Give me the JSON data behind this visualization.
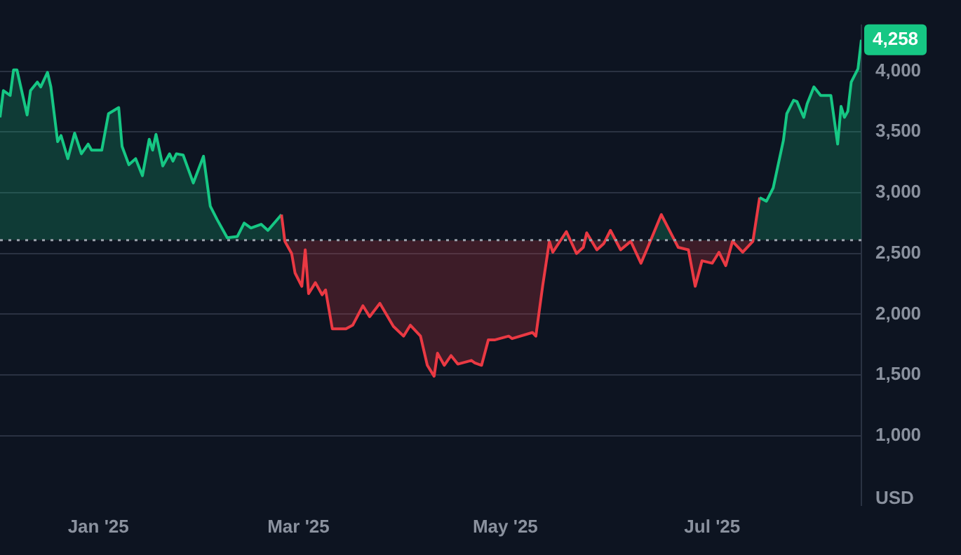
{
  "chart_data": {
    "type": "area",
    "ylabel": "USD",
    "x": [
      "2024-12-03",
      "2024-12-04",
      "2024-12-06",
      "2024-12-07",
      "2024-12-08",
      "2024-12-11",
      "2024-12-12",
      "2024-12-14",
      "2024-12-15",
      "2024-12-17",
      "2024-12-18",
      "2024-12-20",
      "2024-12-21",
      "2024-12-23",
      "2024-12-25",
      "2024-12-27",
      "2024-12-29",
      "2024-12-30",
      "2025-01-02",
      "2025-01-04",
      "2025-01-07",
      "2025-01-08",
      "2025-01-10",
      "2025-01-12",
      "2025-01-14",
      "2025-01-16",
      "2025-01-17",
      "2025-01-18",
      "2025-01-20",
      "2025-01-22",
      "2025-01-23",
      "2025-01-24",
      "2025-01-26",
      "2025-01-29",
      "2025-02-01",
      "2025-02-03",
      "2025-02-05",
      "2025-02-08",
      "2025-02-11",
      "2025-02-13",
      "2025-02-15",
      "2025-02-18",
      "2025-02-20",
      "2025-02-24",
      "2025-02-25",
      "2025-02-27",
      "2025-02-28",
      "2025-03-02",
      "2025-03-03",
      "2025-03-04",
      "2025-03-06",
      "2025-03-08",
      "2025-03-09",
      "2025-03-11",
      "2025-03-15",
      "2025-03-17",
      "2025-03-20",
      "2025-03-22",
      "2025-03-25",
      "2025-03-29",
      "2025-04-01",
      "2025-04-03",
      "2025-04-06",
      "2025-04-08",
      "2025-04-10",
      "2025-04-11",
      "2025-04-13",
      "2025-04-15",
      "2025-04-17",
      "2025-04-21",
      "2025-04-22",
      "2025-04-24",
      "2025-04-26",
      "2025-04-28",
      "2025-05-02",
      "2025-05-03",
      "2025-05-09",
      "2025-05-10",
      "2025-05-12",
      "2025-05-14",
      "2025-05-15",
      "2025-05-19",
      "2025-05-22",
      "2025-05-24",
      "2025-05-25",
      "2025-05-28",
      "2025-05-30",
      "2025-06-01",
      "2025-06-04",
      "2025-06-07",
      "2025-06-10",
      "2025-06-12",
      "2025-06-16",
      "2025-06-21",
      "2025-06-24",
      "2025-06-26",
      "2025-06-28",
      "2025-07-01",
      "2025-07-03",
      "2025-07-05",
      "2025-07-07",
      "2025-07-10",
      "2025-07-13",
      "2025-07-15",
      "2025-07-17",
      "2025-07-19",
      "2025-07-22",
      "2025-07-23",
      "2025-07-25",
      "2025-07-26",
      "2025-07-28",
      "2025-07-29",
      "2025-07-31",
      "2025-08-02",
      "2025-08-05",
      "2025-08-07",
      "2025-08-08",
      "2025-08-09",
      "2025-08-10",
      "2025-08-11",
      "2025-08-13",
      "2025-08-14"
    ],
    "series": [
      {
        "color": "#16c784",
        "values": [
          3620,
          3840,
          3800,
          4010,
          4010,
          3640,
          3840,
          3910,
          3870,
          3990,
          3870,
          3420,
          3470,
          3280,
          3490,
          3320,
          3400,
          3350,
          3350,
          3650,
          3700,
          3380,
          3230,
          3280,
          3140,
          3440,
          3350,
          3480,
          3220,
          3320,
          3260,
          3320,
          3310,
          3080,
          3300,
          2890,
          2780,
          2630,
          2640,
          2750,
          2710,
          2740,
          2690,
          2820,
          2600,
          2500,
          2340,
          2230,
          2530,
          2170,
          2260,
          2160,
          2200,
          1880,
          1880,
          1910,
          2070,
          1980,
          2090,
          1900,
          1820,
          1910,
          1820,
          1580,
          1490,
          1680,
          1580,
          1660,
          1590,
          1620,
          1600,
          1580,
          1790,
          1790,
          1820,
          1800,
          1850,
          1820,
          2230,
          2600,
          2510,
          2680,
          2500,
          2550,
          2670,
          2530,
          2580,
          2690,
          2530,
          2600,
          2420,
          2550,
          2820,
          2550,
          2530,
          2230,
          2440,
          2420,
          2510,
          2400,
          2600,
          2510,
          2600,
          2960,
          2930,
          3040,
          3430,
          3650,
          3760,
          3750,
          3620,
          3730,
          3870,
          3800,
          3800,
          3400,
          3710,
          3620,
          3670,
          3910,
          4020,
          4258
        ]
      }
    ],
    "xlim": [
      "2024-12-03",
      "2025-08-14"
    ],
    "xticks": [
      {
        "value": "2025-01-01",
        "label": "Jan '25"
      },
      {
        "value": "2025-03-01",
        "label": "Mar '25"
      },
      {
        "value": "2025-05-01",
        "label": "May '25"
      },
      {
        "value": "2025-07-01",
        "label": "Jul '25"
      }
    ],
    "ylim": [
      430,
      4380
    ],
    "yticks": [
      {
        "value": 1000,
        "label": "1,000"
      },
      {
        "value": 1500,
        "label": "1,500"
      },
      {
        "value": 2000,
        "label": "2,000"
      },
      {
        "value": 2500,
        "label": "2,500"
      },
      {
        "value": 3000,
        "label": "3,000"
      },
      {
        "value": 3500,
        "label": "3,500"
      },
      {
        "value": 4000,
        "label": "4,000"
      }
    ],
    "grid": "y",
    "legend": false,
    "marker": "none",
    "ref_lines": [
      {
        "axis": "y",
        "value": 2610,
        "color": "#9aa0ab",
        "line_style": "dotted"
      }
    ],
    "annotations": [
      {
        "text": "4,258",
        "x": "2025-08-14",
        "y": 4258
      }
    ]
  }
}
